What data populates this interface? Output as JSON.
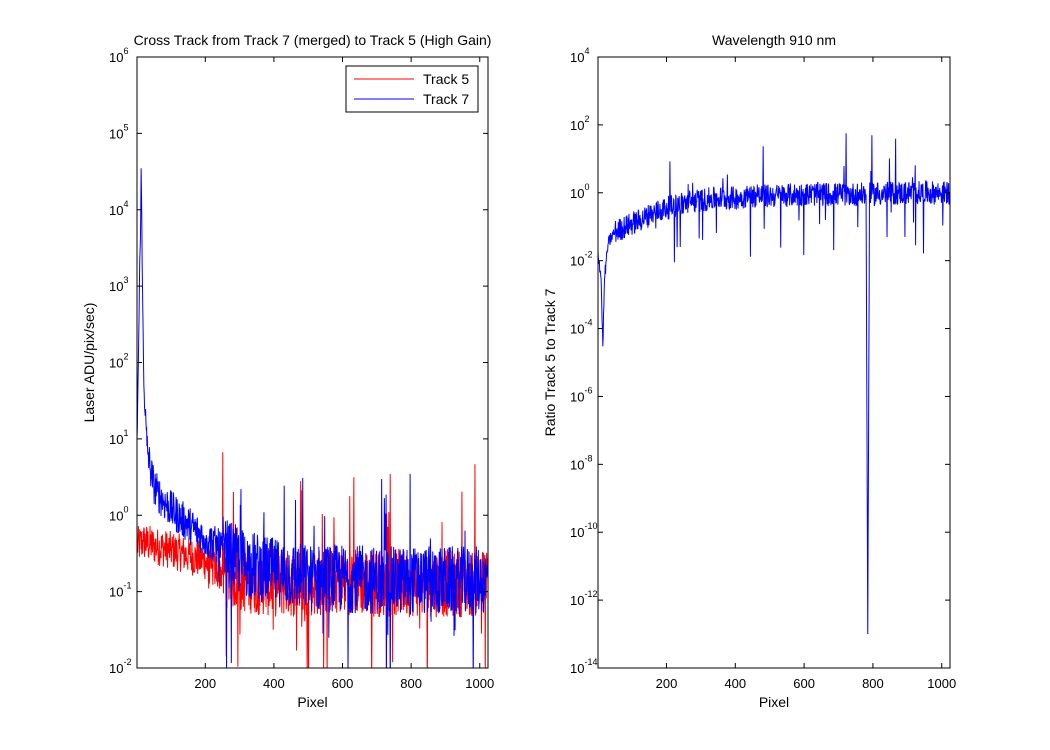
{
  "chart_data": [
    {
      "type": "line",
      "title": "Cross Track from Track 7 (merged) to Track 5 (High Gain)",
      "xlabel": "Pixel",
      "ylabel": "Laser ADU/pix/sec)",
      "xlim": [
        1,
        1024
      ],
      "ylim_log10": [
        -2,
        6
      ],
      "yscale": "log",
      "x_ticks": [
        200,
        400,
        600,
        800,
        1000
      ],
      "y_tick_exponents": [
        -2,
        -1,
        0,
        1,
        2,
        3,
        4,
        5,
        6
      ],
      "legend_position": "top-right",
      "series": [
        {
          "name": "Track 5",
          "color": "#ff0000",
          "x": [
            1,
            20,
            50,
            100,
            150,
            200,
            220,
            250,
            300,
            400,
            500,
            600,
            700,
            800,
            900,
            1000,
            1024
          ],
          "y": [
            0.4,
            0.45,
            0.4,
            0.35,
            0.3,
            0.25,
            0.2,
            0.18,
            0.15,
            0.13,
            0.13,
            0.14,
            0.13,
            0.13,
            0.13,
            0.13,
            0.13
          ]
        },
        {
          "name": "Track 7",
          "color": "#0000ff",
          "x": [
            1,
            5,
            10,
            13,
            16,
            20,
            25,
            30,
            40,
            50,
            60,
            80,
            100,
            130,
            160,
            200,
            250,
            300,
            400,
            500,
            600,
            700,
            800,
            900,
            1000,
            1024
          ],
          "y": [
            10,
            100,
            3000,
            35000,
            2000,
            100,
            20,
            8,
            4,
            2.5,
            2,
            1.5,
            1.2,
            0.9,
            0.7,
            0.5,
            0.35,
            0.25,
            0.18,
            0.15,
            0.15,
            0.14,
            0.14,
            0.14,
            0.14,
            0.14
          ]
        }
      ]
    },
    {
      "type": "line",
      "title": "Wavelength 910 nm",
      "xlabel": "Pixel",
      "ylabel": "Ratio Track 5 to Track 7",
      "xlim": [
        1,
        1024
      ],
      "ylim_log10": [
        -14,
        4
      ],
      "yscale": "log",
      "x_ticks": [
        200,
        400,
        600,
        800,
        1000
      ],
      "y_tick_exponents": [
        -14,
        -12,
        -10,
        -8,
        -6,
        -4,
        -2,
        0,
        2,
        4
      ],
      "series": [
        {
          "name": "",
          "color": "#0000ff",
          "x": [
            1,
            10,
            15,
            20,
            25,
            30,
            40,
            50,
            80,
            120,
            160,
            200,
            250,
            300,
            350,
            400,
            440,
            500,
            600,
            700,
            780,
            785,
            790,
            800,
            900,
            1000,
            1024
          ],
          "y": [
            0.02,
            0.003,
            3e-05,
            0.003,
            0.01,
            0.03,
            0.05,
            0.07,
            0.1,
            0.15,
            0.25,
            0.35,
            0.5,
            0.6,
            0.7,
            0.7,
            0.8,
            0.8,
            0.9,
            0.9,
            0.9,
            1e-13,
            0.9,
            0.9,
            1.0,
            1.0,
            1.0
          ]
        }
      ]
    }
  ]
}
